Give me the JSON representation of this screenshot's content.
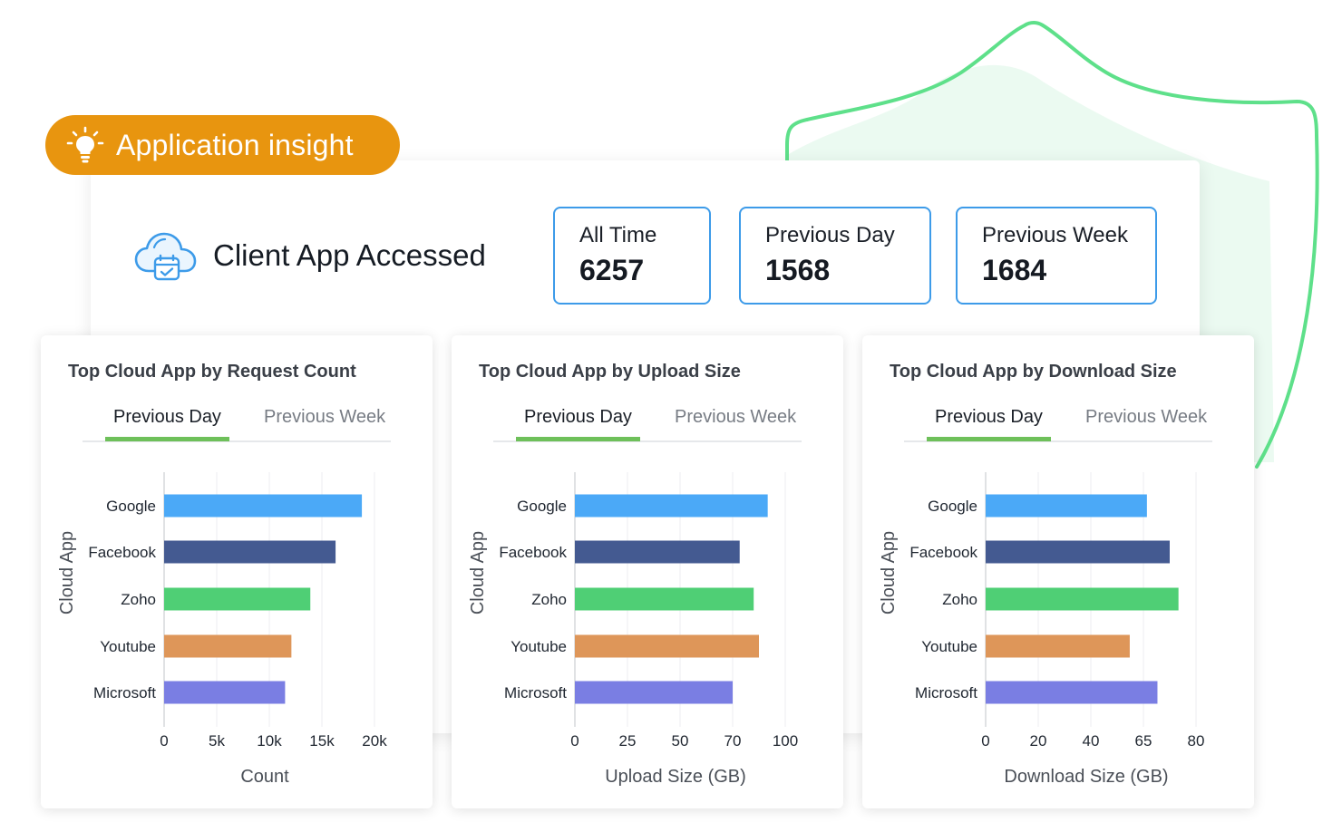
{
  "badge": {
    "label": "Application insight",
    "icon": "lightbulb-icon"
  },
  "header": {
    "title": "Client App Accessed",
    "icon": "cloud-calendar-icon"
  },
  "stats": [
    {
      "label": "All Time",
      "value": "6257"
    },
    {
      "label": "Previous Day",
      "value": "1568"
    },
    {
      "label": "Previous Week",
      "value": "1684"
    }
  ],
  "colors": {
    "accent_orange": "#e8950f",
    "stat_border": "#3d9be9",
    "tab_active": "#6ec05a",
    "shield": "#5ee08a",
    "bars": [
      "#4ba9f7",
      "#445a91",
      "#4fcf75",
      "#de9659",
      "#7a7ee3"
    ]
  },
  "chart_data": [
    {
      "type": "bar",
      "orientation": "horizontal",
      "title": "Top Cloud App by Request Count",
      "tabs": {
        "active": "Previous Day",
        "inactive": "Previous Week"
      },
      "categories": [
        "Google",
        "Facebook",
        "Zoho",
        "Youtube",
        "Microsoft"
      ],
      "values": [
        18800,
        16300,
        13900,
        12100,
        11500
      ],
      "ticks": [
        0,
        5000,
        10000,
        15000,
        20000
      ],
      "tick_labels": [
        "0",
        "5k",
        "10k",
        "15k",
        "20k"
      ],
      "xlabel": "Count",
      "ylabel": "Cloud App",
      "grid": true
    },
    {
      "type": "bar",
      "orientation": "horizontal",
      "title": "Top Cloud App by Upload Size",
      "tabs": {
        "active": "Previous Day",
        "inactive": "Previous Week"
      },
      "categories": [
        "Google",
        "Facebook",
        "Zoho",
        "Youtube",
        "Microsoft"
      ],
      "values": [
        90,
        74,
        82,
        85,
        70
      ],
      "ticks": [
        0,
        25,
        50,
        70,
        100
      ],
      "tick_labels": [
        "0",
        "25",
        "50",
        "70",
        "100"
      ],
      "xlabel": "Upload Size (GB)",
      "ylabel": "Cloud App",
      "grid": true
    },
    {
      "type": "bar",
      "orientation": "horizontal",
      "title": "Top Cloud App by Download Size",
      "tabs": {
        "active": "Previous Day",
        "inactive": "Previous Week"
      },
      "categories": [
        "Google",
        "Facebook",
        "Zoho",
        "Youtube",
        "Microsoft"
      ],
      "values": [
        66,
        72.5,
        75,
        58.5,
        69
      ],
      "ticks": [
        0,
        20,
        40,
        65,
        80
      ],
      "tick_labels": [
        "0",
        "20",
        "40",
        "65",
        "80"
      ],
      "xlabel": "Download Size (GB)",
      "ylabel": "Cloud App",
      "grid": true
    }
  ]
}
